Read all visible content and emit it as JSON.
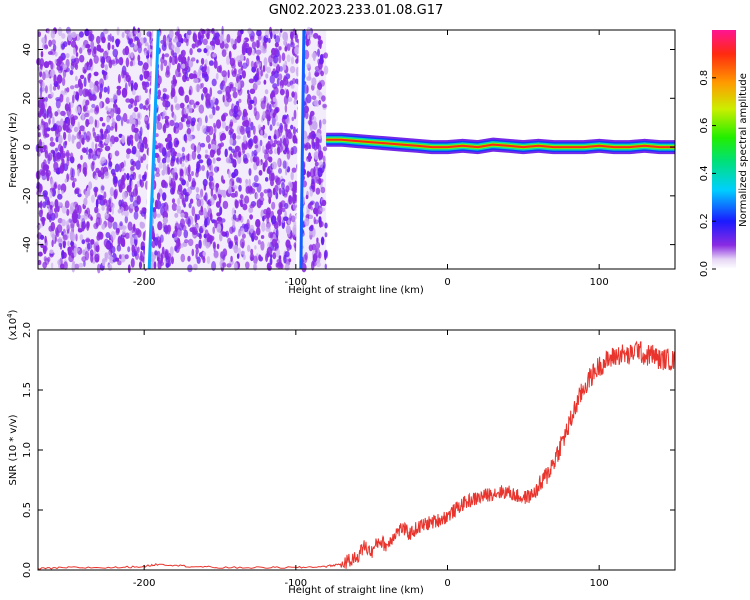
{
  "title": "GN02.2023.233.01.08.G17",
  "chart_data": [
    {
      "type": "heatmap",
      "xlabel": "Height of straight line (km)",
      "ylabel": "Frequency (Hz)",
      "xlim": [
        -270,
        150
      ],
      "ylim": [
        -50,
        48
      ],
      "xticks": [
        -200,
        -100,
        0,
        100
      ],
      "yticks": [
        -40,
        -20,
        0,
        20,
        40
      ],
      "colorbar": {
        "label": "Normalized spectral amplitude",
        "range": [
          0,
          1
        ],
        "ticks": [
          0.0,
          0.2,
          0.4,
          0.6,
          0.8
        ]
      },
      "noise_region": {
        "x": [
          -270,
          -80
        ],
        "y": [
          -50,
          48
        ]
      },
      "streaks": [
        {
          "x_top": -192,
          "x_bottom": -198,
          "amplitude": 0.3
        },
        {
          "x_top": -96,
          "x_bottom": -98,
          "amplitude": 0.25
        }
      ],
      "ridge": {
        "x": [
          -80,
          -70,
          -60,
          -50,
          -40,
          -30,
          -20,
          -10,
          0,
          10,
          20,
          30,
          40,
          50,
          60,
          70,
          80,
          90,
          100,
          110,
          120,
          130,
          140,
          150
        ],
        "frequency": [
          3,
          3,
          2.5,
          2,
          1.5,
          1,
          0.5,
          0,
          0,
          0.5,
          0,
          1,
          0.5,
          0,
          0.5,
          0,
          0,
          0,
          0.5,
          0,
          0,
          0.5,
          0,
          0
        ],
        "amplitude": 0.9
      }
    },
    {
      "type": "line",
      "xlabel": "Height of straight line (km)",
      "ylabel": "SNR (10 * v/v)",
      "multiplier": "(x10",
      "multiplier_exp": "4",
      "multiplier_close": ")",
      "xlim": [
        -270,
        150
      ],
      "ylim": [
        0,
        2.0
      ],
      "xticks": [
        -200,
        -100,
        0,
        100
      ],
      "yticks": [
        0.0,
        0.5,
        1.0,
        1.5,
        2.0
      ],
      "series": [
        {
          "color": "#e8342c",
          "x": [
            -270,
            -250,
            -220,
            -200,
            -190,
            -170,
            -150,
            -120,
            -100,
            -80,
            -70,
            -60,
            -55,
            -50,
            -45,
            -40,
            -35,
            -30,
            -25,
            -20,
            -15,
            -10,
            -5,
            0,
            5,
            10,
            15,
            20,
            25,
            30,
            35,
            40,
            45,
            50,
            55,
            60,
            65,
            70,
            75,
            80,
            85,
            90,
            95,
            100,
            105,
            110,
            115,
            120,
            125,
            130,
            135,
            140,
            145,
            150
          ],
          "y": [
            0.01,
            0.02,
            0.02,
            0.03,
            0.05,
            0.03,
            0.02,
            0.02,
            0.02,
            0.03,
            0.05,
            0.1,
            0.2,
            0.15,
            0.25,
            0.2,
            0.3,
            0.35,
            0.3,
            0.35,
            0.38,
            0.4,
            0.42,
            0.45,
            0.5,
            0.55,
            0.58,
            0.6,
            0.62,
            0.64,
            0.65,
            0.65,
            0.62,
            0.6,
            0.62,
            0.68,
            0.78,
            0.9,
            1.05,
            1.2,
            1.38,
            1.52,
            1.62,
            1.7,
            1.74,
            1.78,
            1.8,
            1.78,
            1.85,
            1.78,
            1.8,
            1.75,
            1.76,
            1.74
          ]
        }
      ]
    }
  ]
}
